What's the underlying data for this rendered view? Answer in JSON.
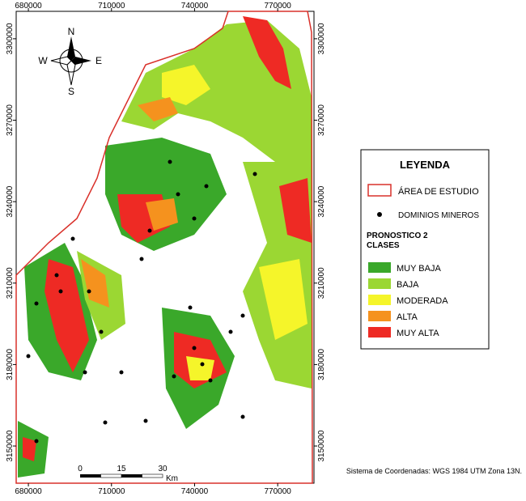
{
  "map": {
    "xticks": [
      680000,
      710000,
      740000,
      770000
    ],
    "yticks": [
      3300000,
      3270000,
      3240000,
      3210000,
      3180000,
      3150000
    ],
    "xlim": [
      675600,
      783100
    ],
    "ylim": [
      3136300,
      3310100
    ],
    "compass": {
      "north": "N",
      "south": "S",
      "east": "E",
      "west": "W"
    },
    "scale_bar": {
      "ticks": [
        0,
        15,
        30
      ],
      "unit": "Km"
    },
    "coordinate_note": "Sistema de Coordenadas: WGS 1984 UTM Zona 13N."
  },
  "legend": {
    "title": "LEYENDA",
    "study_area": "ÁREA DE ESTUDIO",
    "mines": "DOMINIOS MINEROS",
    "section_title": "PRONOSTICO 2 CLASES",
    "classes": [
      {
        "name": "MUY BAJA",
        "color": "#3aa82a"
      },
      {
        "name": "BAJA",
        "color": "#9bd733"
      },
      {
        "name": "MODERADA",
        "color": "#f5f52a"
      },
      {
        "name": "ALTA",
        "color": "#f5921e"
      },
      {
        "name": "MUY ALTA",
        "color": "#ee2a24"
      }
    ]
  }
}
